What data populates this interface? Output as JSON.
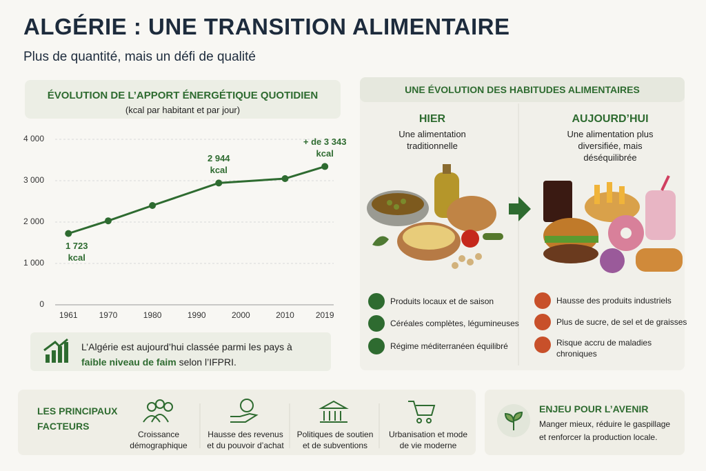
{
  "header": {
    "title": "ALGÉRIE : UNE TRANSITION ALIMENTAIRE",
    "subtitle": "Plus de quantité, mais un défi de qualité"
  },
  "chart_data": {
    "type": "line",
    "title": "ÉVOLUTION DE L’APPORT ÉNERGÉTIQUE QUOTIDIEN",
    "subtitle": "(kcal par habitant et par jour)",
    "x": [
      1961,
      1970,
      1980,
      1995,
      2010,
      2019
    ],
    "values": [
      1723,
      2030,
      2400,
      2944,
      3050,
      3343
    ],
    "value_labels": [
      "1 723\nkcal",
      null,
      null,
      "2 944\nkcal",
      null,
      "+ de 3 343\nkcal"
    ],
    "color": "#2e6b30",
    "xlim": [
      1958,
      2021
    ],
    "xticks": [
      1961,
      1970,
      1980,
      1990,
      2000,
      2010,
      2019
    ],
    "ylim": [
      0,
      4000
    ],
    "yticks": [
      0,
      {
        "value": 1000,
        "label": "1 000"
      },
      {
        "value": 2000,
        "label": "2 000"
      },
      {
        "value": 3000,
        "label": "3 000"
      },
      {
        "value": 4000,
        "label": "4 000"
      }
    ],
    "grid": true
  },
  "note": {
    "parts": [
      "L’Algérie est aujourd’hui classée parmi les pays à",
      "faible niveau de faim",
      "selon l’IFPRI."
    ]
  },
  "habits": {
    "title": "UNE ÉVOLUTION DES HABITUDES ALIMENTAIRES",
    "before": {
      "title": "HIER",
      "subtitle": "Une alimentation traditionnelle",
      "items": [
        "Produits locaux et de saison",
        "Céréales complètes, légumineuses",
        "Régime méditerranéen équilibré"
      ]
    },
    "now": {
      "title": "AUJOURD’HUI",
      "subtitle": "Une alimentation plus diversifiée, mais déséquilibrée",
      "items": [
        "Hausse des produits industriels",
        "Plus de sucre, de sel et de graisses",
        "Risque accru de maladies chroniques"
      ]
    }
  },
  "factors": {
    "title": "LES PRINCIPAUX FACTEURS",
    "items": [
      "Croissance démographique",
      "Hausse des revenus et du pouvoir d’achat",
      "Politiques de soutien et de subventions",
      "Urbanisation et mode de vie moderne"
    ]
  },
  "future": {
    "title": "ENJEU POUR L’AVENIR",
    "text": "Manger mieux, réduire le gaspillage et renforcer la production locale."
  }
}
